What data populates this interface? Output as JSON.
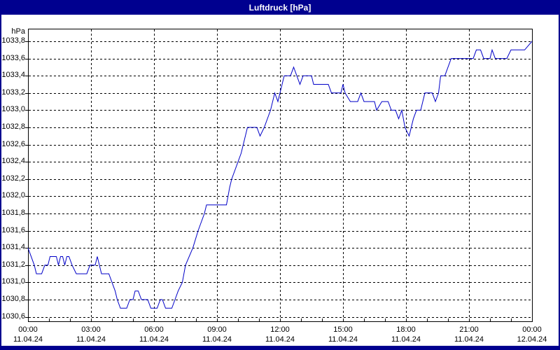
{
  "window": {
    "title": "Luftdruck [hPa]"
  },
  "y_axis": {
    "unit": "hPa",
    "tick_labels": [
      "1033,8",
      "1033,6",
      "1033,4",
      "1033,2",
      "1033,0",
      "1032,8",
      "1032,6",
      "1032,4",
      "1032,2",
      "1032,0",
      "1031,8",
      "1031,6",
      "1031,4",
      "1031,2",
      "1031,0",
      "1030,8",
      "1030,6"
    ]
  },
  "x_axis": {
    "ticks": [
      {
        "time": "00:00",
        "date": "11.04.24"
      },
      {
        "time": "03:00",
        "date": "11.04.24"
      },
      {
        "time": "06:00",
        "date": "11.04.24"
      },
      {
        "time": "09:00",
        "date": "11.04.24"
      },
      {
        "time": "12:00",
        "date": "11.04.24"
      },
      {
        "time": "15:00",
        "date": "11.04.24"
      },
      {
        "time": "18:00",
        "date": "11.04.24"
      },
      {
        "time": "21:00",
        "date": "11.04.24"
      },
      {
        "time": "00:00",
        "date": "12.04.24"
      }
    ]
  },
  "colors": {
    "window_background": "#00008f",
    "titlebar_background": "#00008f",
    "title_text": "#ffffff",
    "panel_background": "#ffffff",
    "grid": "#000000",
    "axis_text": "#000000",
    "line": "#0000c8"
  },
  "chart_data": {
    "type": "line",
    "title": "Luftdruck [hPa]",
    "ylabel": "hPa",
    "series_name": "Luftdruck",
    "ylim": [
      1030.6,
      1033.8
    ],
    "y_tick_step": 0.2,
    "xlim_hours": [
      0,
      24
    ],
    "x_major_step_hours": 3,
    "x_minor_step_hours": 1,
    "grid": true,
    "legend": "none",
    "points_hours_value": [
      [
        0.0,
        1031.4
      ],
      [
        0.3,
        1031.2
      ],
      [
        0.4,
        1031.1
      ],
      [
        0.65,
        1031.1
      ],
      [
        0.8,
        1031.2
      ],
      [
        0.95,
        1031.2
      ],
      [
        1.05,
        1031.3
      ],
      [
        1.35,
        1031.3
      ],
      [
        1.45,
        1031.2
      ],
      [
        1.55,
        1031.3
      ],
      [
        1.65,
        1031.3
      ],
      [
        1.75,
        1031.2
      ],
      [
        1.85,
        1031.3
      ],
      [
        1.95,
        1031.3
      ],
      [
        2.1,
        1031.2
      ],
      [
        2.3,
        1031.1
      ],
      [
        2.8,
        1031.1
      ],
      [
        2.95,
        1031.2
      ],
      [
        3.2,
        1031.2
      ],
      [
        3.3,
        1031.3
      ],
      [
        3.5,
        1031.1
      ],
      [
        3.85,
        1031.1
      ],
      [
        4.0,
        1031.0
      ],
      [
        4.15,
        1030.9
      ],
      [
        4.25,
        1030.8
      ],
      [
        4.4,
        1030.7
      ],
      [
        4.7,
        1030.7
      ],
      [
        4.85,
        1030.8
      ],
      [
        5.0,
        1030.8
      ],
      [
        5.1,
        1030.9
      ],
      [
        5.25,
        1030.9
      ],
      [
        5.4,
        1030.8
      ],
      [
        5.7,
        1030.8
      ],
      [
        5.85,
        1030.7
      ],
      [
        6.15,
        1030.7
      ],
      [
        6.3,
        1030.8
      ],
      [
        6.4,
        1030.8
      ],
      [
        6.55,
        1030.7
      ],
      [
        6.85,
        1030.7
      ],
      [
        7.0,
        1030.8
      ],
      [
        7.15,
        1030.9
      ],
      [
        7.35,
        1031.0
      ],
      [
        7.5,
        1031.2
      ],
      [
        7.85,
        1031.4
      ],
      [
        8.1,
        1031.6
      ],
      [
        8.4,
        1031.8
      ],
      [
        8.5,
        1031.9
      ],
      [
        9.45,
        1031.9
      ],
      [
        9.6,
        1032.1
      ],
      [
        9.7,
        1032.2
      ],
      [
        9.85,
        1032.3
      ],
      [
        10.0,
        1032.4
      ],
      [
        10.15,
        1032.5
      ],
      [
        10.25,
        1032.6
      ],
      [
        10.45,
        1032.8
      ],
      [
        10.9,
        1032.8
      ],
      [
        11.05,
        1032.7
      ],
      [
        11.25,
        1032.8
      ],
      [
        11.55,
        1033.0
      ],
      [
        11.75,
        1033.2
      ],
      [
        11.9,
        1033.1
      ],
      [
        12.0,
        1033.2
      ],
      [
        12.2,
        1033.4
      ],
      [
        12.5,
        1033.4
      ],
      [
        12.65,
        1033.5
      ],
      [
        12.95,
        1033.3
      ],
      [
        13.1,
        1033.4
      ],
      [
        13.5,
        1033.4
      ],
      [
        13.6,
        1033.3
      ],
      [
        14.3,
        1033.3
      ],
      [
        14.45,
        1033.2
      ],
      [
        14.9,
        1033.2
      ],
      [
        15.0,
        1033.3
      ],
      [
        15.1,
        1033.2
      ],
      [
        15.35,
        1033.1
      ],
      [
        15.7,
        1033.1
      ],
      [
        15.85,
        1033.2
      ],
      [
        16.0,
        1033.1
      ],
      [
        16.5,
        1033.1
      ],
      [
        16.6,
        1033.0
      ],
      [
        16.85,
        1033.1
      ],
      [
        17.15,
        1033.1
      ],
      [
        17.3,
        1033.0
      ],
      [
        17.5,
        1033.0
      ],
      [
        17.65,
        1032.9
      ],
      [
        17.8,
        1033.0
      ],
      [
        17.95,
        1032.8
      ],
      [
        18.15,
        1032.7
      ],
      [
        18.35,
        1032.9
      ],
      [
        18.5,
        1033.0
      ],
      [
        18.7,
        1033.0
      ],
      [
        18.9,
        1033.2
      ],
      [
        19.25,
        1033.2
      ],
      [
        19.4,
        1033.1
      ],
      [
        19.55,
        1033.2
      ],
      [
        19.65,
        1033.4
      ],
      [
        19.85,
        1033.4
      ],
      [
        20.0,
        1033.5
      ],
      [
        20.15,
        1033.6
      ],
      [
        21.2,
        1033.6
      ],
      [
        21.35,
        1033.7
      ],
      [
        21.55,
        1033.7
      ],
      [
        21.7,
        1033.6
      ],
      [
        22.0,
        1033.6
      ],
      [
        22.1,
        1033.7
      ],
      [
        22.25,
        1033.6
      ],
      [
        22.8,
        1033.6
      ],
      [
        23.0,
        1033.7
      ],
      [
        23.65,
        1033.7
      ],
      [
        24.0,
        1033.8
      ]
    ]
  }
}
